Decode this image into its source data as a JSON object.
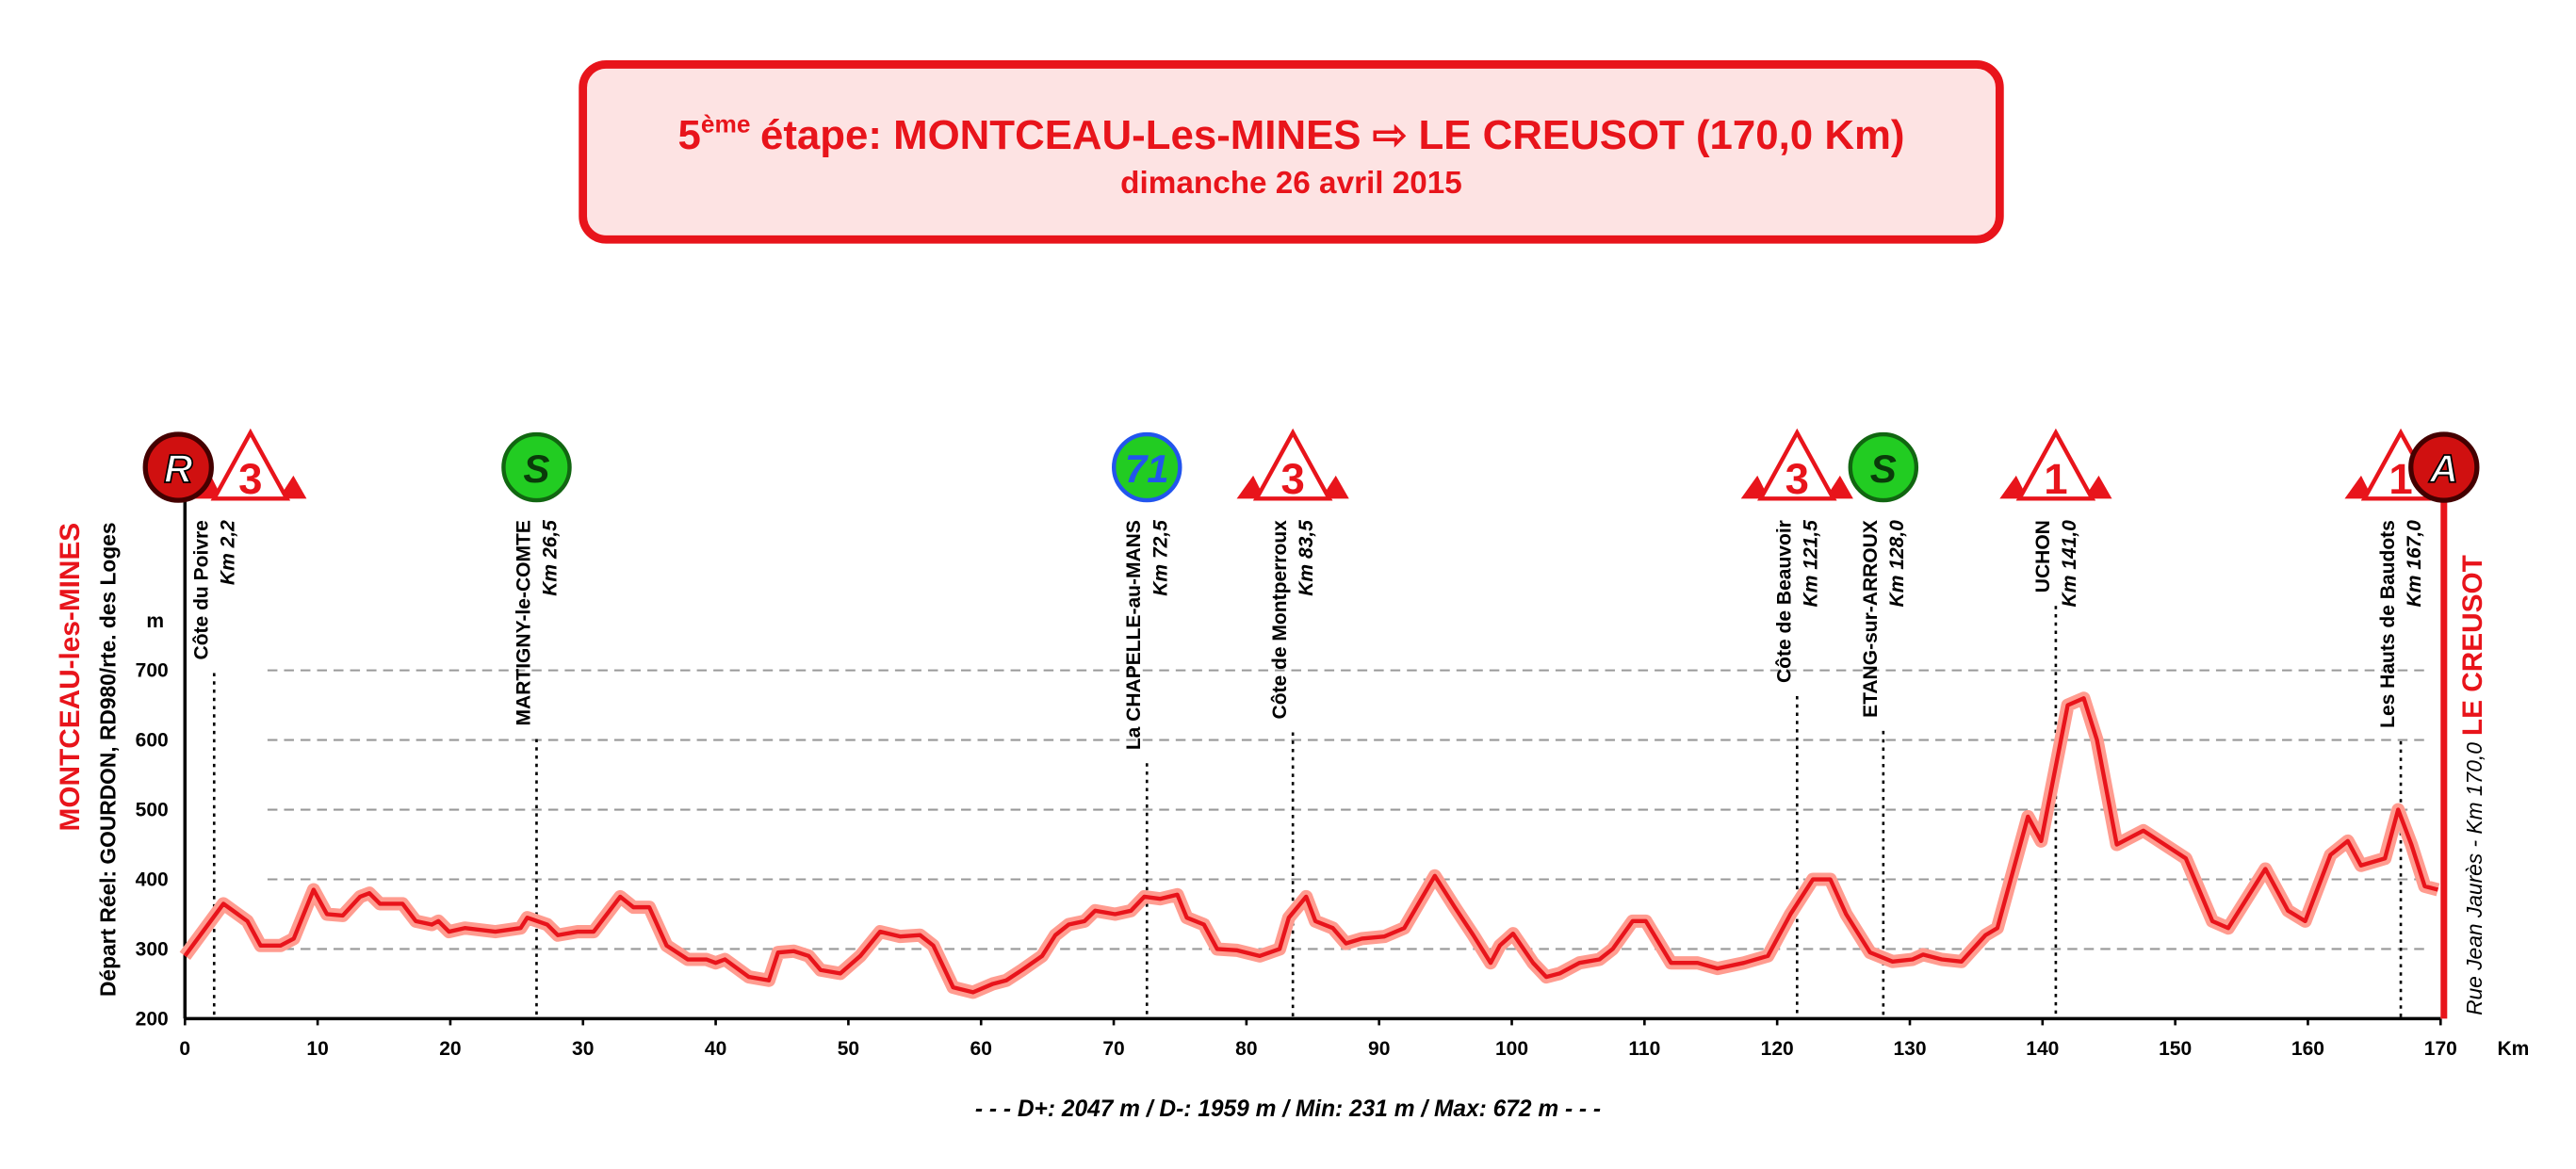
{
  "chart_data": {
    "type": "line",
    "title_number": "5",
    "title_suffix": "ème",
    "title": "étape: MONTCEAU-Les-MINES ⇨ LE CREUSOT (170,0 Km)",
    "subtitle": "dimanche 26 avril 2015",
    "start_name": "MONTCEAU-les-MINES",
    "start_detail": "Départ Réel: GOURDON, RD980/rte. des Loges",
    "start_icon": "R",
    "finish_name": "LE CREUSOT",
    "finish_detail": "Rue Jean Jaurès - Km 170,0",
    "finish_icon": "A",
    "y_unit": "m",
    "x_unit": "Km",
    "stats": "- - - D+: 2047 m / D-: 1959 m / Min: 231 m / Max: 672 m - - -",
    "color": "#e8141b",
    "xlim": [
      0,
      170
    ],
    "xticks": [
      0,
      10,
      20,
      30,
      40,
      50,
      60,
      70,
      80,
      90,
      100,
      110,
      120,
      130,
      140,
      150,
      160,
      170
    ],
    "ylim": [
      200,
      700
    ],
    "yticks": [
      200,
      300,
      400,
      500,
      600,
      700
    ],
    "grid": true,
    "x": [
      0,
      2.9,
      4.7,
      5.7,
      7.2,
      8.2,
      9.7,
      10.7,
      11.9,
      13.2,
      13.9,
      14.7,
      16.4,
      17.4,
      18.6,
      19.1,
      19.9,
      21.1,
      23.4,
      25.3,
      25.8,
      27.3,
      28.1,
      29.6,
      30.8,
      32.8,
      33.8,
      35.0,
      36.3,
      37.9,
      39.3,
      40.0,
      40.7,
      42.5,
      44.0,
      44.7,
      45.9,
      47.0,
      47.9,
      49.4,
      50.9,
      52.4,
      53.9,
      55.4,
      56.4,
      57.9,
      59.4,
      60.9,
      61.9,
      63.1,
      64.6,
      65.6,
      66.6,
      67.8,
      68.6,
      70.1,
      71.3,
      72.3,
      73.5,
      74.8,
      75.5,
      76.8,
      77.8,
      79.3,
      81.0,
      82.5,
      83.2,
      84.5,
      85.2,
      86.5,
      87.5,
      88.7,
      90.4,
      91.9,
      94.2,
      95.7,
      97.1,
      98.4,
      99.1,
      100.1,
      101.6,
      102.6,
      103.6,
      105.1,
      106.6,
      107.6,
      109.1,
      110.1,
      112.0,
      114.0,
      115.5,
      117.5,
      119.3,
      121.0,
      122.7,
      124.0,
      125.2,
      127.0,
      128.7,
      130.2,
      131.0,
      132.4,
      133.9,
      135.7,
      136.6,
      138.9,
      139.9,
      141.9,
      143.1,
      144.1,
      145.6,
      147.6,
      150.8,
      152.8,
      154.0,
      156.8,
      158.5,
      159.8,
      161.7,
      163.0,
      164.0,
      165.8,
      166.8,
      167.8,
      168.8,
      169.8
    ],
    "values": [
      290,
      365,
      340,
      305,
      305,
      315,
      385,
      350,
      348,
      375,
      380,
      365,
      365,
      340,
      335,
      340,
      325,
      330,
      325,
      330,
      345,
      335,
      320,
      325,
      325,
      375,
      360,
      360,
      305,
      285,
      285,
      280,
      285,
      260,
      255,
      295,
      297,
      290,
      270,
      265,
      290,
      325,
      318,
      320,
      305,
      245,
      238,
      250,
      255,
      270,
      290,
      320,
      335,
      340,
      355,
      350,
      355,
      375,
      372,
      378,
      345,
      335,
      300,
      298,
      290,
      300,
      345,
      375,
      340,
      330,
      308,
      315,
      318,
      330,
      405,
      360,
      320,
      280,
      305,
      322,
      280,
      260,
      265,
      280,
      285,
      300,
      340,
      340,
      280,
      280,
      272,
      280,
      290,
      350,
      400,
      400,
      350,
      295,
      282,
      285,
      292,
      285,
      282,
      320,
      330,
      490,
      455,
      650,
      660,
      600,
      450,
      470,
      430,
      340,
      330,
      415,
      355,
      340,
      435,
      455,
      420,
      430,
      500,
      450,
      390,
      385
    ],
    "markers": [
      {
        "label": "Côte du Poivre",
        "km": 2.2,
        "km_label": "Km 2,2",
        "icon": "3",
        "shape": "triangle"
      },
      {
        "label": "MARTIGNY-le-COMTE",
        "km": 26.5,
        "km_label": "Km 26,5",
        "icon": "S",
        "shape": "circle",
        "color": "#22cc22"
      },
      {
        "label": "La CHAPELLE-au-MANS",
        "km": 72.5,
        "km_label": "Km 72,5",
        "icon": "71",
        "shape": "circle",
        "color": "#22cc22"
      },
      {
        "label": "Côte de Montperroux",
        "km": 83.5,
        "km_label": "Km 83,5",
        "icon": "3",
        "shape": "triangle"
      },
      {
        "label": "Côte de Beauvoir",
        "km": 121.5,
        "km_label": "Km 121,5",
        "icon": "3",
        "shape": "triangle"
      },
      {
        "label": "ETANG-sur-ARROUX",
        "km": 128.0,
        "km_label": "Km 128,0",
        "icon": "S",
        "shape": "circle",
        "color": "#22cc22"
      },
      {
        "label": "UCHON",
        "km": 141.0,
        "km_label": "Km 141,0",
        "icon": "1",
        "shape": "triangle"
      },
      {
        "label": "Les Hauts de Baudots",
        "km": 167.0,
        "km_label": "Km 167,0",
        "icon": "1",
        "shape": "triangle"
      }
    ]
  }
}
